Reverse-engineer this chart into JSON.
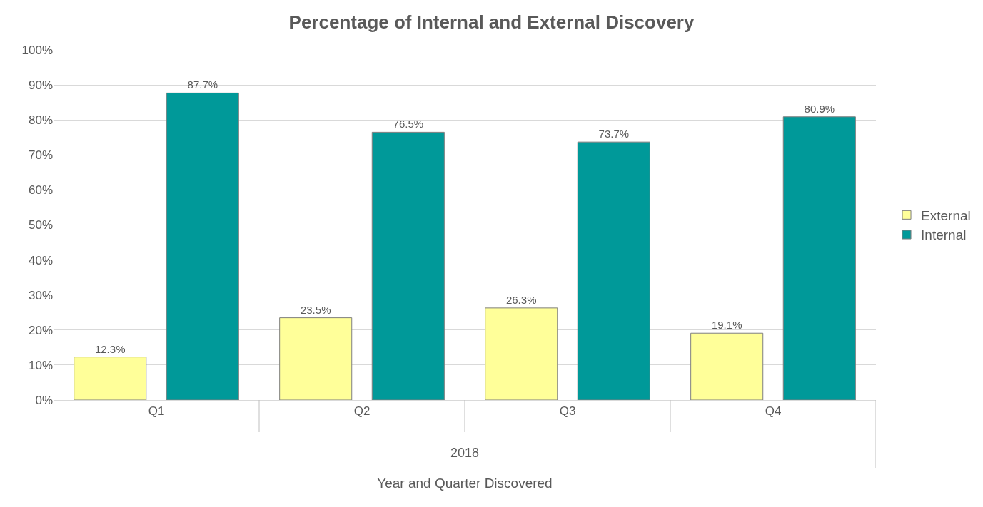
{
  "chart_data": {
    "type": "bar",
    "title": "Percentage of Internal and External Discovery",
    "xlabel": "Year and Quarter Discovered",
    "annotations": [
      "2018"
    ],
    "categories": [
      "Q1",
      "Q2",
      "Q3",
      "Q4"
    ],
    "series": [
      {
        "name": "External",
        "color": "#ffff99",
        "values": [
          12.3,
          23.5,
          26.3,
          19.1
        ],
        "value_labels": [
          "12.3%",
          "23.5%",
          "26.3%",
          "19.1%"
        ]
      },
      {
        "name": "Internal",
        "color": "#009999",
        "values": [
          87.7,
          76.5,
          73.7,
          80.9
        ],
        "value_labels": [
          "87.7%",
          "76.5%",
          "73.7%",
          "80.9%"
        ]
      }
    ],
    "ylim": [
      0,
      100
    ],
    "yticks": [
      {
        "value": 0,
        "label": "0%"
      },
      {
        "value": 10,
        "label": "10%"
      },
      {
        "value": 20,
        "label": "20%"
      },
      {
        "value": 30,
        "label": "30%"
      },
      {
        "value": 40,
        "label": "40%"
      },
      {
        "value": 50,
        "label": "50%"
      },
      {
        "value": 60,
        "label": "60%"
      },
      {
        "value": 70,
        "label": "70%"
      },
      {
        "value": 80,
        "label": "80%"
      },
      {
        "value": 90,
        "label": "90%"
      },
      {
        "value": 100,
        "label": "100%"
      }
    ],
    "grid": "y",
    "legend": "right"
  }
}
